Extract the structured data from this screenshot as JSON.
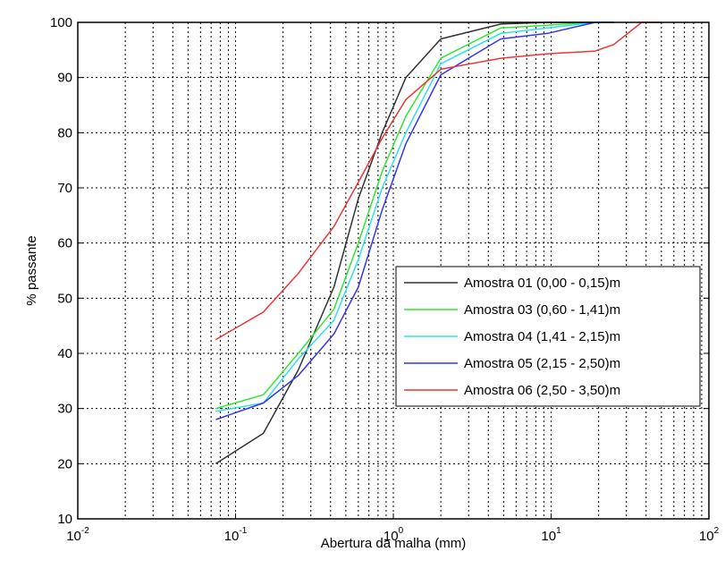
{
  "chart_data": {
    "type": "line",
    "title": "",
    "xlabel": "Abertura da malha (mm)",
    "ylabel": "% passante",
    "xscale": "log",
    "xlim": [
      0.01,
      100
    ],
    "ylim": [
      10,
      100
    ],
    "x_ticks": [
      {
        "base": "10",
        "exp": "-2",
        "value": 0.01
      },
      {
        "base": "10",
        "exp": "-1",
        "value": 0.1
      },
      {
        "base": "10",
        "exp": "0",
        "value": 1
      },
      {
        "base": "10",
        "exp": "1",
        "value": 10
      },
      {
        "base": "10",
        "exp": "2",
        "value": 100
      }
    ],
    "y_ticks": [
      "10",
      "20",
      "30",
      "40",
      "50",
      "60",
      "70",
      "80",
      "90",
      "100"
    ],
    "grid": true,
    "legend_position": "right",
    "series": [
      {
        "name": "Amostra 01 (0,00 - 0,15)m",
        "color": "#333333",
        "x": [
          0.075,
          0.15,
          0.25,
          0.42,
          0.6,
          0.85,
          1.2,
          2.0,
          4.8,
          9.5,
          19,
          25
        ],
        "y": [
          20,
          25.5,
          37,
          52,
          68,
          80,
          90,
          97,
          99.7,
          100,
          100,
          100
        ]
      },
      {
        "name": "Amostra 03 (0,60 - 1,41)m",
        "color": "#2ee82e",
        "x": [
          0.075,
          0.15,
          0.25,
          0.42,
          0.6,
          0.85,
          1.2,
          2.0,
          4.8,
          9.5,
          19,
          25
        ],
        "y": [
          30,
          32.5,
          40,
          48,
          60,
          73,
          83,
          93.5,
          99,
          99.5,
          100,
          100
        ]
      },
      {
        "name": "Amostra 04 (1,41 - 2,15)m",
        "color": "#2ee0ee",
        "x": [
          0.075,
          0.15,
          0.25,
          0.42,
          0.6,
          0.85,
          1.2,
          2.0,
          4.8,
          9.5,
          19,
          25
        ],
        "y": [
          29.5,
          31,
          39,
          46,
          57,
          70,
          80,
          92.5,
          98,
          99,
          100,
          100
        ]
      },
      {
        "name": "Amostra 05 (2,15 - 2,50)m",
        "color": "#3434ee",
        "x": [
          0.075,
          0.15,
          0.25,
          0.42,
          0.6,
          0.85,
          1.2,
          2.0,
          4.8,
          9.5,
          19,
          25
        ],
        "y": [
          28,
          31,
          36,
          43.5,
          52,
          66,
          78,
          90.5,
          97,
          98,
          100,
          100
        ]
      },
      {
        "name": "Amostra 06 (2,50 - 3,50)m",
        "color": "#ee3434",
        "x": [
          0.075,
          0.15,
          0.25,
          0.42,
          0.6,
          0.85,
          1.2,
          2.0,
          4.8,
          9.5,
          19,
          25,
          37.5,
          50
        ],
        "y": [
          42.5,
          47.5,
          54.5,
          63,
          71,
          79,
          86,
          91.5,
          93.5,
          94.3,
          94.8,
          96,
          100,
          100
        ]
      }
    ]
  }
}
